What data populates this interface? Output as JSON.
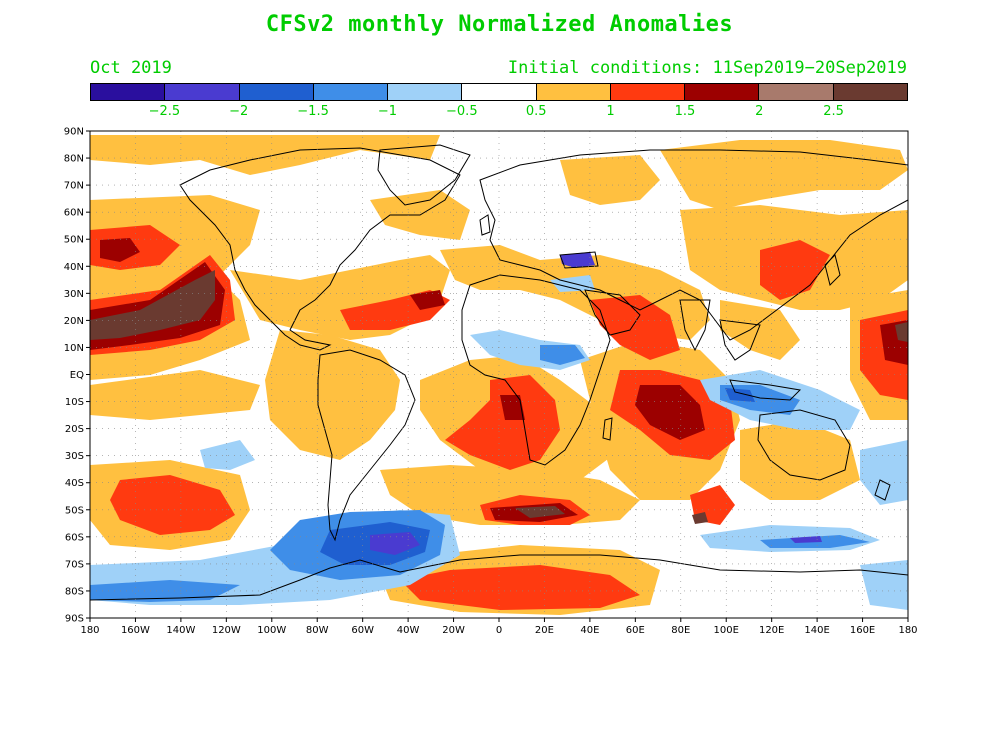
{
  "title": "CFSv2 monthly Normalized Anomalies",
  "month": "Oct 2019",
  "initial_conditions": "Initial conditions: 11Sep2019−20Sep2019",
  "text_color": "#00cc00",
  "colorbar": {
    "colors": [
      "#2a0f9e",
      "#4a3bd0",
      "#1f5fd0",
      "#3f8ee8",
      "#9fd1f8",
      "#ffffff",
      "#ffc040",
      "#ff3a10",
      "#9c0000",
      "#a87a6c",
      "#6a3a30"
    ],
    "labels": [
      "−2.5",
      "−2",
      "−1.5",
      "−1",
      "−0.5",
      "0.5",
      "1",
      "1.5",
      "2",
      "2.5"
    ]
  },
  "map": {
    "lat_labels": [
      "90N",
      "80N",
      "70N",
      "60N",
      "50N",
      "40N",
      "30N",
      "20N",
      "10N",
      "EQ",
      "10S",
      "20S",
      "30S",
      "40S",
      "50S",
      "60S",
      "70S",
      "80S",
      "90S"
    ],
    "lon_labels": [
      "180",
      "160W",
      "140W",
      "120W",
      "100W",
      "80W",
      "60W",
      "40W",
      "20W",
      "0",
      "20E",
      "40E",
      "60E",
      "80E",
      "100E",
      "120E",
      "140E",
      "160E",
      "180"
    ],
    "projection": "equirectangular",
    "grid": "dotted 10 degree"
  }
}
